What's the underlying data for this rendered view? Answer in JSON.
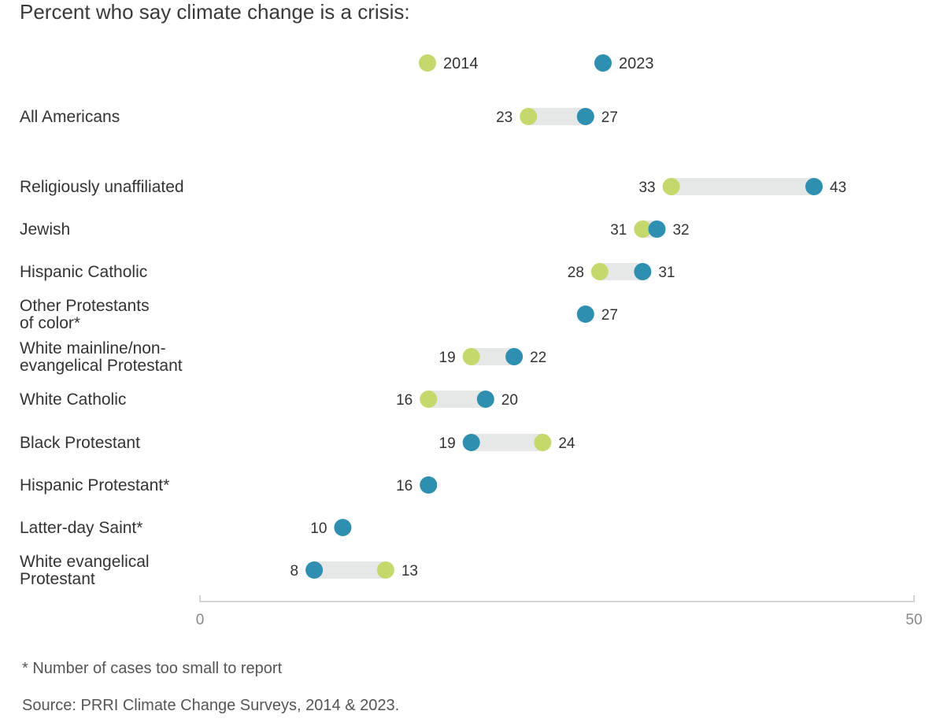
{
  "chart_data": {
    "type": "dumbbell",
    "title": "Percent who say climate change is a crisis:",
    "xlim": [
      0,
      50
    ],
    "ticks": [
      0,
      50
    ],
    "tick_labels": [
      "0",
      "50"
    ],
    "legend": [
      {
        "name": "2014",
        "color": "#c3d96b"
      },
      {
        "name": "2023",
        "color": "#2e8fb0"
      }
    ],
    "series_names": [
      "2014",
      "2023"
    ],
    "rows": [
      {
        "label": [
          "All Americans"
        ],
        "v2014": 23,
        "v2023": 27,
        "l2014": "23",
        "l2023": "27"
      },
      {
        "label": [
          "Religiously unaffiliated"
        ],
        "v2014": 33,
        "v2023": 43,
        "l2014": "33",
        "l2023": "43"
      },
      {
        "label": [
          "Jewish"
        ],
        "v2014": 31,
        "v2023": 32,
        "l2014": "31",
        "l2023": "32"
      },
      {
        "label": [
          "Hispanic Catholic"
        ],
        "v2014": 28,
        "v2023": 31,
        "l2014": "28",
        "l2023": "31"
      },
      {
        "label": [
          "Other Protestants",
          "of color*"
        ],
        "v2014": null,
        "v2023": 27,
        "l2014": null,
        "l2023": "27"
      },
      {
        "label": [
          "White mainline/non-",
          "evangelical Protestant"
        ],
        "v2014": 19,
        "v2023": 22,
        "l2014": "19",
        "l2023": "22"
      },
      {
        "label": [
          "White Catholic"
        ],
        "v2014": 16,
        "v2023": 20,
        "l2014": "16",
        "l2023": "20"
      },
      {
        "label": [
          "Black Protestant"
        ],
        "v2014": 24,
        "v2023": 19,
        "l2014": "24",
        "l2023": "19"
      },
      {
        "label": [
          "Hispanic Protestant*"
        ],
        "v2014": null,
        "v2023": 16,
        "l2014": null,
        "l2023": "16"
      },
      {
        "label": [
          "Latter-day Saint*"
        ],
        "v2014": null,
        "v2023": 10,
        "l2014": null,
        "l2023": "10"
      },
      {
        "label": [
          "White evangelical",
          "Protestant"
        ],
        "v2014": 13,
        "v2023": 8,
        "l2014": "13",
        "l2023": "8"
      }
    ],
    "colors": {
      "c2014": "#c3d96b",
      "c2023": "#2e8fb0",
      "bar": "#e6e8e8",
      "axis": "#d4d4d4"
    }
  },
  "footnotes": {
    "note": "* Number of cases too small to report",
    "source": "Source: PRRI Climate Change Surveys, 2014 & 2023."
  }
}
